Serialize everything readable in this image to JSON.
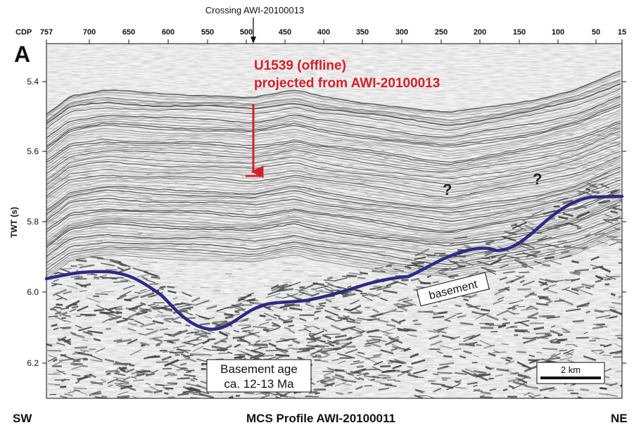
{
  "panel_letter": "A",
  "crossing_label": "Crossing AWI-20100013",
  "cdp_label": "CDP",
  "cdp_ticks": [
    "757",
    "700",
    "650",
    "600",
    "550",
    "500",
    "450",
    "400",
    "350",
    "300",
    "250",
    "200",
    "150",
    "100",
    "50",
    "15"
  ],
  "y_axis_label": "TWT (s)",
  "y_ticks": [
    "5.4",
    "5.6",
    "5.8",
    "6.0",
    "6.2"
  ],
  "site_label_line1": "U1539 (offline)",
  "site_label_line2": "projected from AWI-20100013",
  "question_mark_1": "?",
  "question_mark_2": "?",
  "basement_label": "basement",
  "basement_age_line1": "Basement age",
  "basement_age_line2": "ca. 12-13 Ma",
  "scale_label": "2 km",
  "left_direction": "SW",
  "right_direction": "NE",
  "profile_title": "MCS Profile AWI-20100011",
  "colors": {
    "annotation_red": "#d4202c",
    "basement_line": "#2e2a84",
    "ink": "#1a1a1a"
  }
}
